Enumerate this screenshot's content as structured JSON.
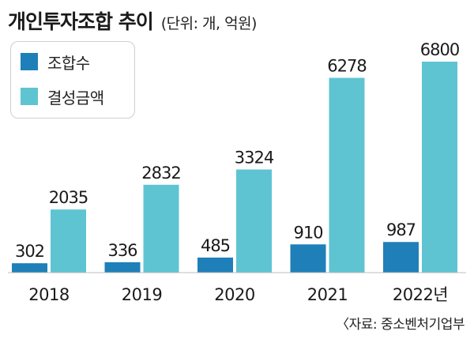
{
  "title": "개인투자조합 추이",
  "unit_note": "(단위: 개, 억원)",
  "source": "〈자료: 중소벤처기업부",
  "colors": {
    "count": "#1f7fb8",
    "amount": "#5fc4d1"
  },
  "chart_data": {
    "type": "bar",
    "categories": [
      "2018",
      "2019",
      "2020",
      "2021",
      "2022년"
    ],
    "series": [
      {
        "name": "조합수",
        "values": [
          302,
          336,
          485,
          910,
          987
        ]
      },
      {
        "name": "결성금액",
        "values": [
          2035,
          2832,
          3324,
          6278,
          6800
        ]
      }
    ],
    "title": "개인투자조합 추이",
    "legend_position": "top-left",
    "grid": false
  }
}
